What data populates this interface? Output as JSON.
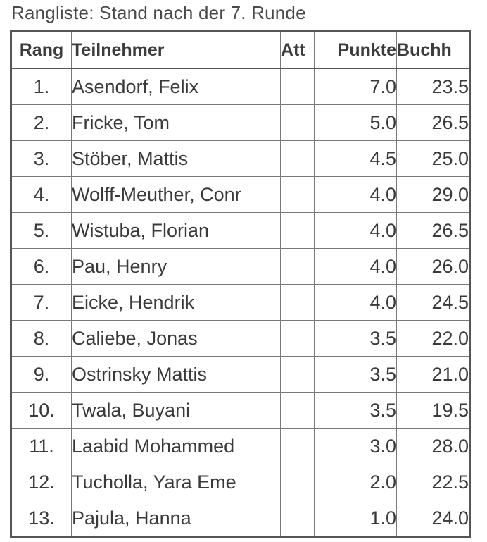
{
  "caption": "Rangliste:  Stand nach der 7. Runde",
  "table": {
    "headers": {
      "rang": "Rang",
      "teilnehmer": "Teilnehmer",
      "att": "Att",
      "punkte": "Punkte",
      "buchh": "Buchh"
    },
    "rows": [
      {
        "rang": "1.",
        "name": "Asendorf, Felix",
        "att": "",
        "punkte": "7.0",
        "buchh": "23.5"
      },
      {
        "rang": "2.",
        "name": "Fricke, Tom",
        "att": "",
        "punkte": "5.0",
        "buchh": "26.5"
      },
      {
        "rang": "3.",
        "name": "Stöber, Mattis",
        "att": "",
        "punkte": "4.5",
        "buchh": "25.0"
      },
      {
        "rang": "4.",
        "name": "Wolff-Meuther, Conr",
        "att": "",
        "punkte": "4.0",
        "buchh": "29.0"
      },
      {
        "rang": "5.",
        "name": "Wistuba, Florian",
        "att": "",
        "punkte": "4.0",
        "buchh": "26.5"
      },
      {
        "rang": "6.",
        "name": "Pau, Henry",
        "att": "",
        "punkte": "4.0",
        "buchh": "26.0"
      },
      {
        "rang": "7.",
        "name": "Eicke, Hendrik",
        "att": "",
        "punkte": "4.0",
        "buchh": "24.5"
      },
      {
        "rang": "8.",
        "name": "Caliebe, Jonas",
        "att": "",
        "punkte": "3.5",
        "buchh": "22.0"
      },
      {
        "rang": "9.",
        "name": "Ostrinsky Mattis",
        "att": "",
        "punkte": "3.5",
        "buchh": "21.0"
      },
      {
        "rang": "10.",
        "name": "Twala, Buyani",
        "att": "",
        "punkte": "3.5",
        "buchh": "19.5"
      },
      {
        "rang": "11.",
        "name": "Laabid Mohammed",
        "att": "",
        "punkte": "3.0",
        "buchh": "28.0"
      },
      {
        "rang": "12.",
        "name": "Tucholla, Yara Eme",
        "att": "",
        "punkte": "2.0",
        "buchh": "22.5"
      },
      {
        "rang": "13.",
        "name": "Pajula, Hanna",
        "att": "",
        "punkte": "1.0",
        "buchh": "24.0"
      }
    ]
  }
}
